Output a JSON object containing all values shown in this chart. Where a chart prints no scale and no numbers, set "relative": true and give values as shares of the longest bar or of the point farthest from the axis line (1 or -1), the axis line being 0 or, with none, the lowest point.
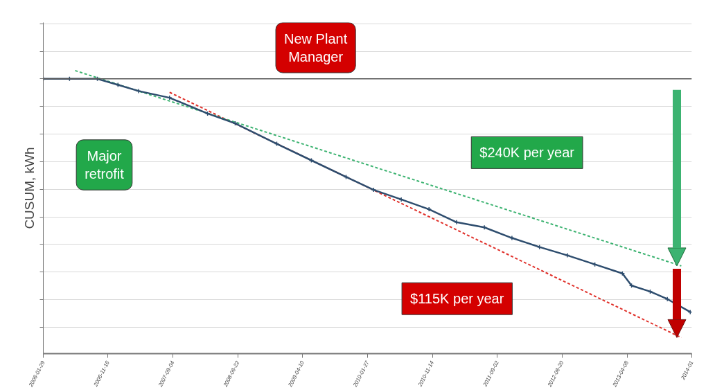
{
  "chart_data": {
    "type": "line",
    "relative": true,
    "ylabel": "CUSUM, kWh",
    "x": [
      "2006-01-29",
      "2006-05-27",
      "2006-09-29",
      "2006-12-31",
      "2007-04-03",
      "2007-08-20",
      "2008-02-07",
      "2008-06-10",
      "2008-12-14",
      "2009-05-19",
      "2009-10-22",
      "2010-02-23",
      "2010-06-27",
      "2010-10-30",
      "2011-03-03",
      "2011-07-06",
      "2011-11-07",
      "2012-03-10",
      "2012-07-13",
      "2012-11-14",
      "2013-03-18",
      "2013-04-28",
      "2013-07-21",
      "2013-10-06",
      "2014-01-17"
    ],
    "series": [
      {
        "color": "#2e4d6e",
        "marker": "cross",
        "line_style": "solid",
        "values": [
          0,
          0,
          0,
          -0.023,
          -0.047,
          -0.073,
          -0.134,
          -0.172,
          -0.251,
          -0.315,
          -0.379,
          -0.429,
          -0.466,
          -0.504,
          -0.554,
          -0.574,
          -0.615,
          -0.65,
          -0.682,
          -0.717,
          -0.752,
          -0.799,
          -0.822,
          -0.851,
          -0.901
        ]
      },
      {
        "type": "line",
        "color": "#3cb371",
        "line_style": "dashed",
        "marker": "none",
        "x": [
          "2006-06-21",
          "2013-12-08"
        ],
        "values": [
          0.032,
          -0.723
        ]
      },
      {
        "type": "line",
        "color": "#e0302a",
        "line_style": "dashed",
        "marker": "none",
        "x": [
          "2007-08-20",
          "2013-12-08"
        ],
        "values": [
          -0.052,
          -1.0
        ]
      }
    ],
    "xlim": [
      "2006-01-29",
      "2014-01-24"
    ],
    "xticks": [
      {
        "value": "2006-01-29",
        "label": "2006-01-29"
      },
      {
        "value": "2006-11-16",
        "label": "2006-11-16"
      },
      {
        "value": "2007-09-04",
        "label": "2007-09-04"
      },
      {
        "value": "2008-06-22",
        "label": "2008-06-22"
      },
      {
        "value": "2009-04-10",
        "label": "2009-04-10"
      },
      {
        "value": "2010-01-27",
        "label": "2010-01-27"
      },
      {
        "value": "2010-11-14",
        "label": "2010-11-14"
      },
      {
        "value": "2011-09-02",
        "label": "2011-09-02"
      },
      {
        "value": "2012-06-20",
        "label": "2012-06-20"
      },
      {
        "value": "2013-04-08",
        "label": "2013-04-08"
      },
      {
        "value": "2014-01-24",
        "label": "2014-01"
      }
    ],
    "grid": "y",
    "tick_labels": "x",
    "annotations": [
      "Major retrofit",
      "New Plant Manager",
      "$240K per year",
      "$115K per year"
    ]
  }
}
